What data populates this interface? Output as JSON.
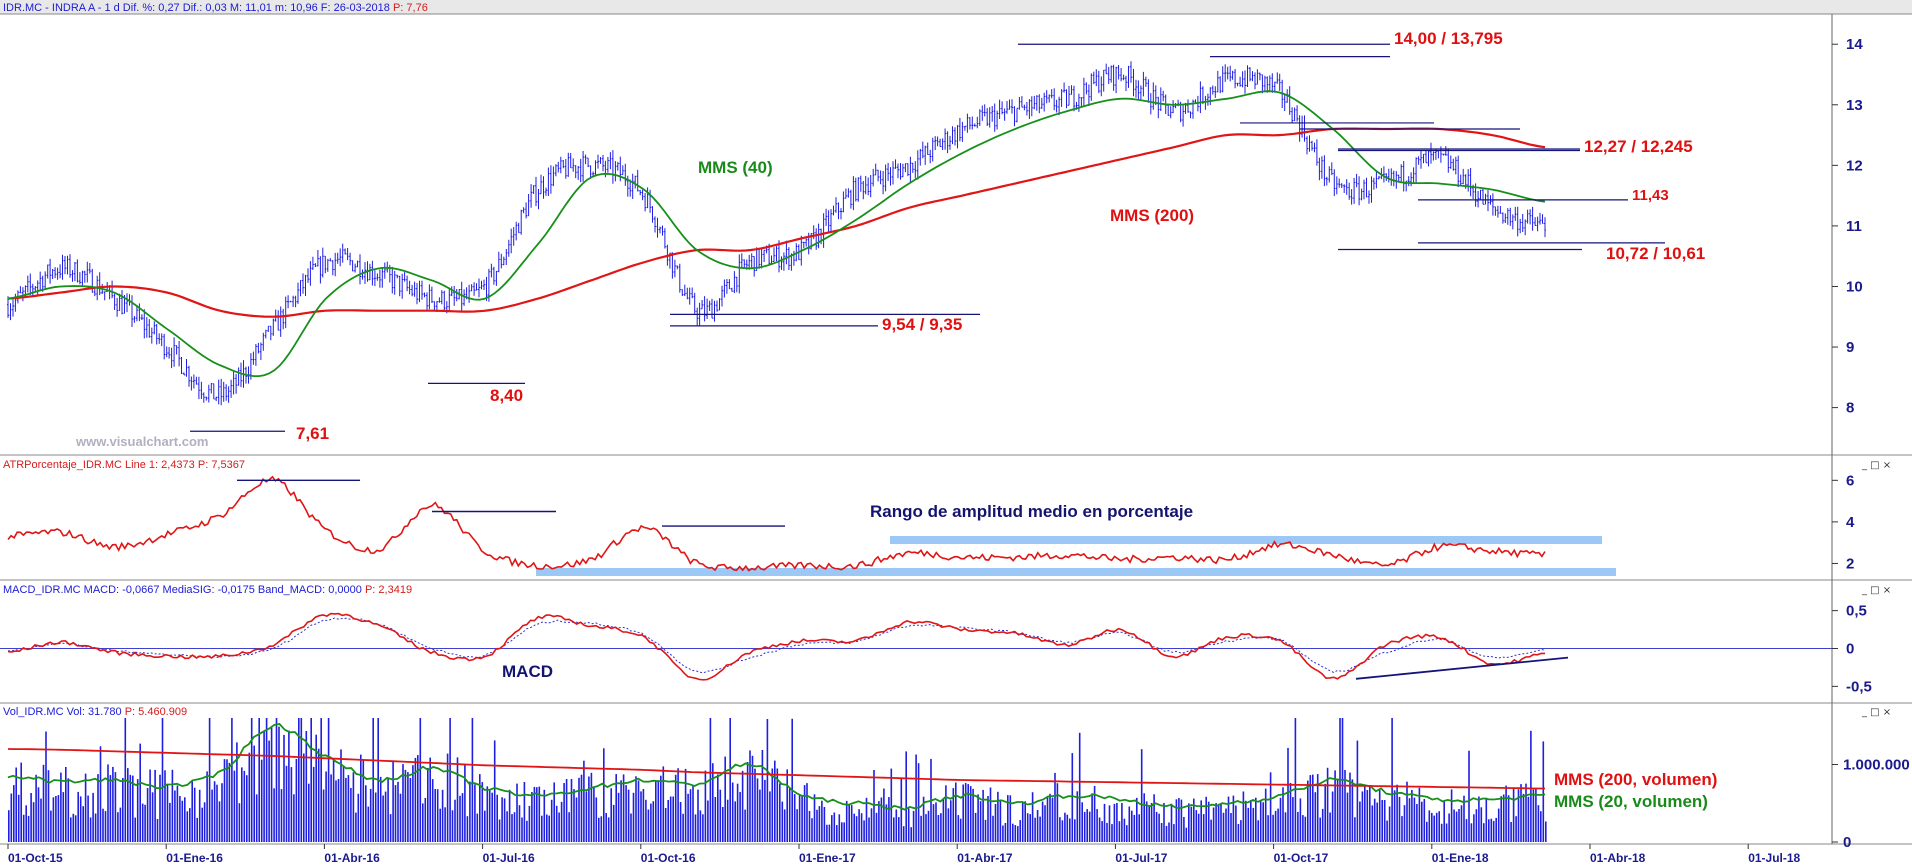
{
  "colors": {
    "price": "#1f1fe0",
    "mms40": "#17901a",
    "mms200": "#e01515",
    "atr": "#e01515",
    "macd": "#e01515",
    "signal": "#3030d0",
    "volume": "#1f1fe0",
    "highlight": "#9cc8f5",
    "support": "#14147a",
    "annotation_red": "#e01010",
    "annotation_green": "#1a8a1a"
  },
  "window_buttons": "_ □ ×",
  "x_axis": {
    "ticks": [
      "01-Oct-15",
      "01-Ene-16",
      "01-Abr-16",
      "01-Jul-16",
      "01-Oct-16",
      "01-Ene-17",
      "01-Abr-17",
      "01-Jul-17",
      "01-Oct-17",
      "01-Ene-18",
      "01-Abr-18",
      "01-Jul-18"
    ]
  },
  "panels": {
    "price": {
      "header": {
        "prefix": "IDR.MC - INDRA A - 1 d  Dif. %: ",
        "dif_pct": "0,27",
        "dif_label": "  Dif.: ",
        "dif": "0,03",
        "max_label": "  M: ",
        "max": "11,01",
        "min_label": "  m: ",
        "min": "10,96",
        "date_label": "  F: ",
        "date": "26-03-2018",
        "p_label": "  P: ",
        "p": "7,76"
      },
      "y_ticks": [
        "14",
        "13",
        "12",
        "11",
        "10",
        "9",
        "8"
      ],
      "watermark": "www.visualchart.com",
      "labels": {
        "mms40": "MMS (40)",
        "mms200": "MMS (200)",
        "lvl_761": "7,61",
        "lvl_840": "8,40",
        "lvl_954": "9,54 / 9,35",
        "lvl_1400": "14,00 / 13,795",
        "lvl_1227": "12,27 / 12,245",
        "lvl_1143": "11,43",
        "lvl_1072": "10,72 / 10,61"
      }
    },
    "atr": {
      "header": {
        "name": "ATRPorcentaje_IDR.MC  Line 1: ",
        "line1": "2,4373",
        "p_label": "  P: ",
        "p": "7,5367"
      },
      "y_ticks": [
        "6",
        "4",
        "2"
      ],
      "title": "Rango de amplitud medio en porcentaje"
    },
    "macd": {
      "header": {
        "name": "MACD_IDR.MC  MACD: ",
        "macd": "-0,0667",
        "sig_label": "  MediaSIG: ",
        "sig": "-0,0175",
        "band_label": "  Band_MACD: ",
        "band": "0,0000",
        "p_label": "  P: ",
        "p": "2,3419"
      },
      "y_ticks": [
        "0,5",
        "0",
        "-0,5"
      ],
      "title": "MACD"
    },
    "volume": {
      "header": {
        "name": "Vol_IDR.MC  Vol: ",
        "vol": "31.780",
        "p_label": "  P: ",
        "p": "5.460.909"
      },
      "y_ticks": [
        "1.000.000",
        "0"
      ],
      "labels": {
        "mms200": "MMS (200, volumen)",
        "mms20": "MMS (20, volumen)"
      }
    }
  },
  "chart_data": [
    {
      "type": "line",
      "panel": "price",
      "x": [
        "01-Oct-15",
        "01-Nov-15",
        "01-Dic-15",
        "01-Ene-16",
        "01-Feb-16",
        "01-Mar-16",
        "01-Abr-16",
        "01-May-16",
        "01-Jun-16",
        "01-Jul-16",
        "01-Ago-16",
        "01-Sep-16",
        "01-Oct-16",
        "01-Nov-16",
        "01-Dic-16",
        "01-Ene-17",
        "01-Feb-17",
        "01-Mar-17",
        "01-Abr-17",
        "01-May-17",
        "01-Jun-17",
        "01-Jul-17",
        "01-Ago-17",
        "01-Sep-17",
        "01-Oct-17",
        "01-Nov-17",
        "01-Dic-17",
        "01-Ene-18",
        "01-Feb-18",
        "01-Mar-18"
      ],
      "series": [
        {
          "name": "IDR.MC",
          "values": [
            9.7,
            10.3,
            9.8,
            9.0,
            8.2,
            9.3,
            10.4,
            10.2,
            9.8,
            10.0,
            11.6,
            12.0,
            11.5,
            9.6,
            10.4,
            10.6,
            11.6,
            12.0,
            12.6,
            12.9,
            13.1,
            13.5,
            12.9,
            13.4,
            13.2,
            11.7,
            11.7,
            12.1,
            11.3,
            11.0
          ]
        },
        {
          "name": "MMS (40)",
          "values": [
            9.8,
            10.0,
            9.9,
            9.3,
            8.7,
            8.6,
            9.8,
            10.3,
            10.1,
            9.8,
            10.7,
            11.8,
            11.6,
            10.6,
            10.3,
            10.6,
            11.1,
            11.7,
            12.2,
            12.6,
            12.9,
            13.1,
            13.0,
            13.1,
            13.2,
            12.6,
            11.8,
            11.7,
            11.6,
            11.4
          ]
        },
        {
          "name": "MMS (200)",
          "values": [
            9.8,
            9.9,
            10.0,
            9.9,
            9.6,
            9.5,
            9.6,
            9.6,
            9.6,
            9.6,
            9.8,
            10.1,
            10.4,
            10.6,
            10.6,
            10.8,
            11.0,
            11.3,
            11.5,
            11.7,
            11.9,
            12.1,
            12.3,
            12.5,
            12.5,
            12.6,
            12.6,
            12.6,
            12.5,
            12.3
          ]
        }
      ],
      "ylim": [
        7.3,
        14.4
      ],
      "levels": [
        {
          "label": "7,61",
          "value": 7.61
        },
        {
          "label": "8,40",
          "value": 8.4
        },
        {
          "label": "9,54 / 9,35",
          "values": [
            9.54,
            9.35
          ]
        },
        {
          "label": "14,00 / 13,795",
          "values": [
            14.0,
            13.795
          ]
        },
        {
          "label": "12,27 / 12,245",
          "values": [
            12.27,
            12.245
          ]
        },
        {
          "label": "11,43",
          "value": 11.43
        },
        {
          "label": "10,72 / 10,61",
          "values": [
            10.72,
            10.61
          ]
        }
      ]
    },
    {
      "type": "line",
      "panel": "atr",
      "series": [
        {
          "name": "ATRPorcentaje_IDR.MC",
          "values": [
            3.3,
            3.5,
            2.8,
            3.4,
            4.3,
            6.0,
            3.6,
            2.7,
            4.8,
            2.6,
            1.9,
            2.2,
            3.7,
            2.0,
            1.8,
            1.9,
            1.9,
            2.5,
            2.3,
            2.3,
            2.4,
            2.2,
            2.3,
            2.2,
            2.9,
            2.4,
            1.9,
            2.8,
            2.6,
            2.4
          ]
        }
      ],
      "ylim": [
        1.3,
        6.4
      ]
    },
    {
      "type": "line",
      "panel": "macd",
      "series": [
        {
          "name": "MACD",
          "values": [
            -0.05,
            0.08,
            -0.05,
            -0.1,
            -0.1,
            0.05,
            0.45,
            0.3,
            -0.05,
            -0.1,
            0.4,
            0.3,
            0.15,
            -0.4,
            -0.05,
            0.1,
            0.1,
            0.35,
            0.25,
            0.2,
            0.05,
            0.25,
            -0.1,
            0.15,
            0.1,
            -0.4,
            0.05,
            0.15,
            -0.2,
            -0.07
          ]
        },
        {
          "name": "MediaSIG",
          "values": [
            -0.03,
            0.06,
            -0.03,
            -0.08,
            -0.11,
            0.0,
            0.38,
            0.32,
            0.0,
            -0.09,
            0.32,
            0.33,
            0.18,
            -0.3,
            -0.12,
            0.06,
            0.09,
            0.3,
            0.27,
            0.21,
            0.08,
            0.2,
            -0.05,
            0.1,
            0.11,
            -0.3,
            -0.05,
            0.12,
            -0.12,
            -0.02
          ]
        }
      ],
      "ylim": [
        -0.68,
        0.68
      ]
    },
    {
      "type": "bar",
      "panel": "volume",
      "series": [
        {
          "name": "MMS (200, volumen)",
          "values": [
            1200000,
            1190000,
            1170000,
            1150000,
            1130000,
            1110000,
            1080000,
            1050000,
            1020000,
            990000,
            970000,
            950000,
            930000,
            900000,
            880000,
            860000,
            840000,
            820000,
            800000,
            790000,
            780000,
            770000,
            760000,
            750000,
            740000,
            730000,
            720000,
            710000,
            700000,
            690000
          ]
        },
        {
          "name": "MMS (20, volumen)",
          "values": [
            850000,
            780000,
            800000,
            720000,
            900000,
            1500000,
            1100000,
            800000,
            950000,
            700000,
            600000,
            700000,
            800000,
            750000,
            1000000,
            600000,
            500000,
            450000,
            600000,
            500000,
            600000,
            550000,
            450000,
            500000,
            600000,
            800000,
            650000,
            550000,
            550000,
            600000
          ]
        }
      ],
      "ylim": [
        0,
        1600000
      ]
    }
  ]
}
